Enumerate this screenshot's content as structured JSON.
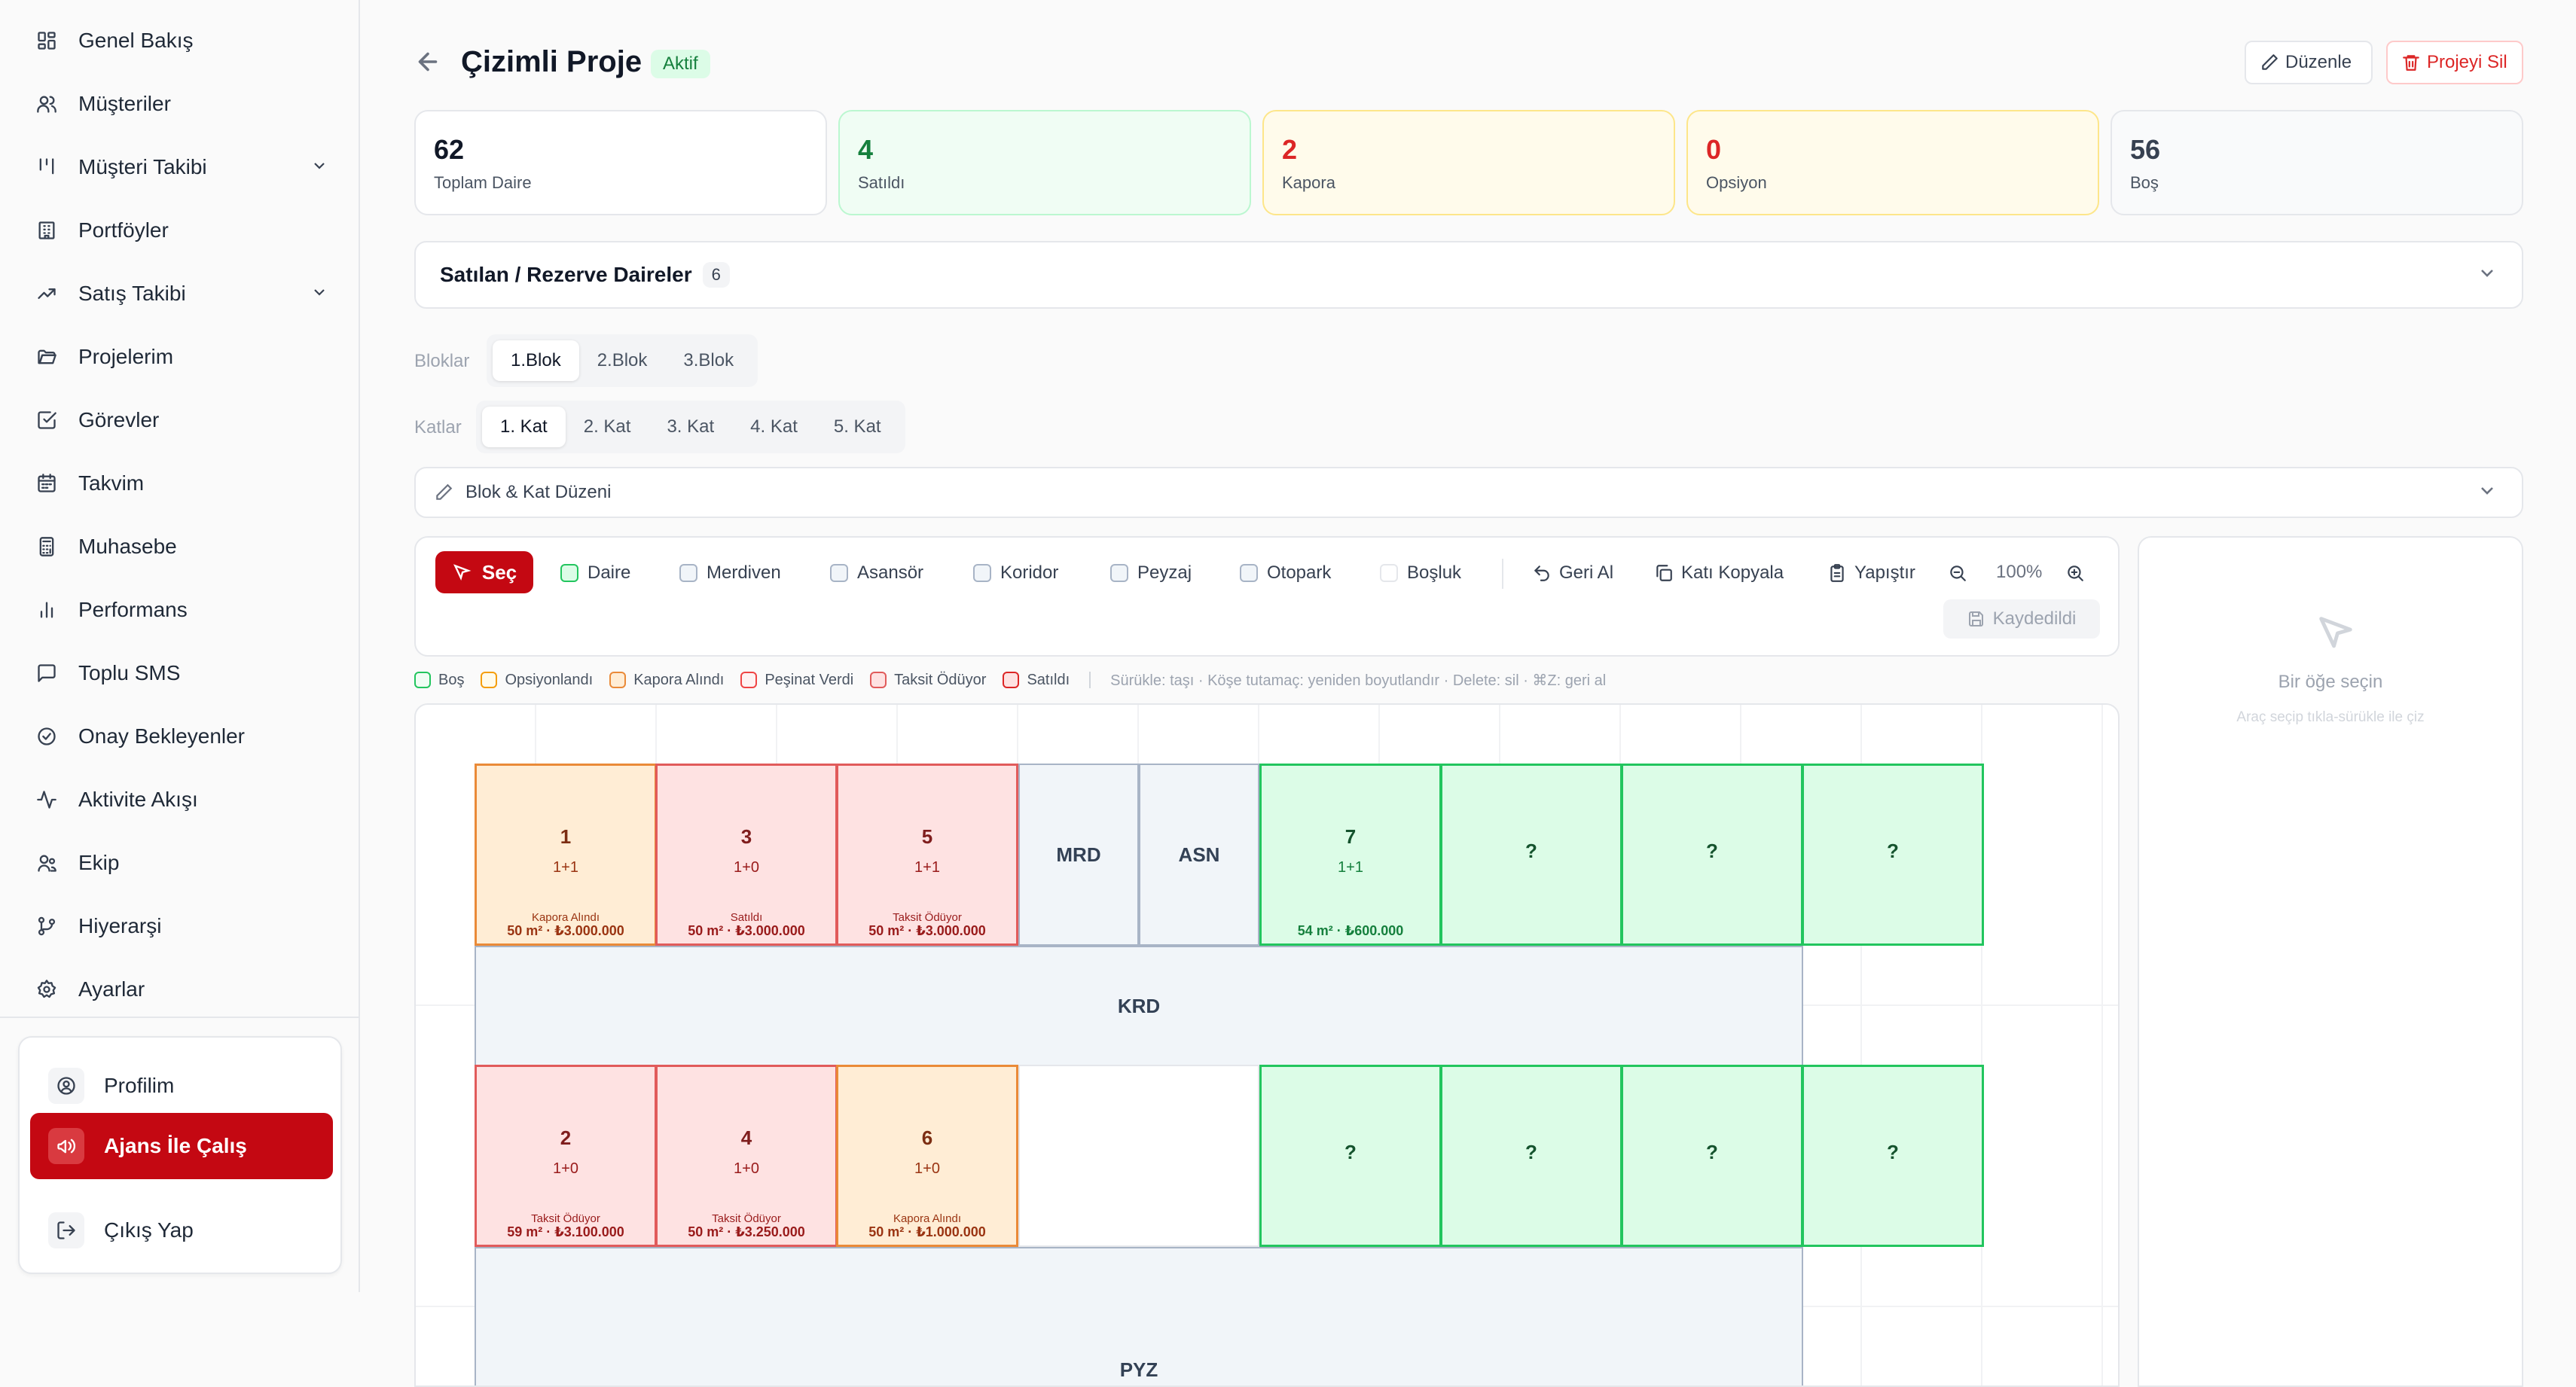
{
  "sidebar": {
    "items": [
      {
        "label": "Genel Bakış"
      },
      {
        "label": "Müşteriler"
      },
      {
        "label": "Müşteri Takibi"
      },
      {
        "label": "Portföyler"
      },
      {
        "label": "Satış Takibi"
      },
      {
        "label": "Projelerim"
      },
      {
        "label": "Görevler"
      },
      {
        "label": "Takvim"
      },
      {
        "label": "Muhasebe"
      },
      {
        "label": "Performans"
      },
      {
        "label": "Toplu SMS"
      },
      {
        "label": "Onay Bekleyenler"
      },
      {
        "label": "Aktivite Akışı"
      },
      {
        "label": "Ekip"
      },
      {
        "label": "Hiyerarşi"
      },
      {
        "label": "Ayarlar"
      }
    ],
    "profile": {
      "label": "Profilim"
    },
    "agency": {
      "label": "Ajans İle Çalış"
    },
    "logout": {
      "label": "Çıkış Yap"
    }
  },
  "header": {
    "title": "Çizimli Proje",
    "status": "Aktif",
    "edit_label": "Düzenle",
    "delete_label": "Projeyi Sil"
  },
  "stats": [
    {
      "value": "62",
      "label": "Toplam Daire"
    },
    {
      "value": "4",
      "label": "Satıldı"
    },
    {
      "value": "2",
      "label": "Kapora"
    },
    {
      "value": "0",
      "label": "Opsiyon"
    },
    {
      "value": "56",
      "label": "Boş"
    }
  ],
  "sold_panel": {
    "title": "Satılan / Rezerve Daireler",
    "count": "6"
  },
  "blocks": {
    "label": "Bloklar",
    "options": [
      "1.Blok",
      "2.Blok",
      "3.Blok"
    ],
    "selected": "1.Blok"
  },
  "floors": {
    "label": "Katlar",
    "options": [
      "1. Kat",
      "2. Kat",
      "3. Kat",
      "4. Kat",
      "5. Kat"
    ],
    "selected": "1. Kat"
  },
  "layout_panel": {
    "title": "Blok & Kat Düzeni"
  },
  "toolbar": {
    "select": "Seç",
    "tools": [
      "Daire",
      "Merdiven",
      "Asansör",
      "Koridor",
      "Peyzaj",
      "Otopark",
      "Boşluk"
    ],
    "undo": "Geri Al",
    "copy_floor": "Katı Kopyala",
    "paste": "Yapıştır",
    "zoom": "100%",
    "saved": "Kaydedildi"
  },
  "legend": {
    "items": [
      {
        "label": "Boş",
        "color": "#22c55e"
      },
      {
        "label": "Opsiyonlandı",
        "color": "#f59e0b"
      },
      {
        "label": "Kapora Alındı",
        "color": "#ea8a38"
      },
      {
        "label": "Peşinat Verdi",
        "color": "#ef4444"
      },
      {
        "label": "Taksit Ödüyor",
        "color": "#e15b5b"
      },
      {
        "label": "Satıldı",
        "color": "#dc2626"
      }
    ],
    "hint": "Sürükle: taşı · Köşe tutamaç: yeniden boyutlandır · Delete: sil · ⌘Z: geri al"
  },
  "floor_plan": {
    "units": [
      {
        "no": "1",
        "rooms": "1+1",
        "status": "Kapora Alındı",
        "price": "50 m² · ₺3.000.000"
      },
      {
        "no": "3",
        "rooms": "1+0",
        "status": "Satıldı",
        "price": "50 m² · ₺3.000.000"
      },
      {
        "no": "5",
        "rooms": "1+1",
        "status": "Taksit Ödüyor",
        "price": "50 m² · ₺3.000.000"
      },
      {
        "no": "MRD"
      },
      {
        "no": "ASN"
      },
      {
        "no": "7",
        "rooms": "1+1",
        "price": "54 m² · ₺600.000"
      },
      {
        "no": "?"
      },
      {
        "no": "?"
      },
      {
        "no": "?"
      },
      {
        "no": "KRD"
      },
      {
        "no": "2",
        "rooms": "1+0",
        "status": "Taksit Ödüyor",
        "price": "59 m² · ₺3.100.000"
      },
      {
        "no": "4",
        "rooms": "1+0",
        "status": "Taksit Ödüyor",
        "price": "50 m² · ₺3.250.000"
      },
      {
        "no": "6",
        "rooms": "1+0",
        "status": "Kapora Alındı",
        "price": "50 m² · ₺1.000.000"
      },
      {
        "no": "?"
      },
      {
        "no": "?"
      },
      {
        "no": "?"
      },
      {
        "no": "?"
      },
      {
        "no": "PYZ"
      }
    ]
  },
  "side_panel": {
    "title": "Bir öğe seçin",
    "hint": "Araç seçip tıkla-sürükle ile çiz"
  }
}
